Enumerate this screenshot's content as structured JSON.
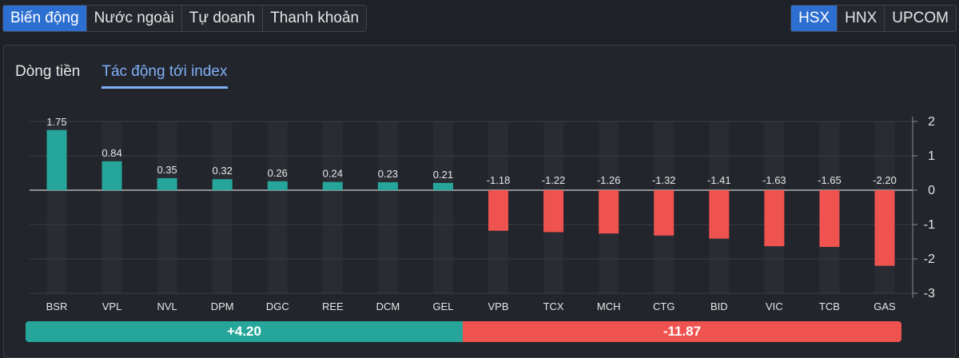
{
  "top_tabs": [
    "Biến động",
    "Nước ngoài",
    "Tự doanh",
    "Thanh khoản"
  ],
  "active_top_tab": 0,
  "exchange_tabs": [
    "HSX",
    "HNX",
    "UPCOM"
  ],
  "active_exchange": 0,
  "sub_tabs": [
    "Dòng tiền",
    "Tác động tới index"
  ],
  "active_sub_tab": 1,
  "colors": {
    "positive": "#26a69a",
    "negative": "#ef5350",
    "accent": "#2d6fd0",
    "accent_text": "#7fb0f5"
  },
  "chart_data": {
    "type": "bar",
    "categories": [
      "BSR",
      "VPL",
      "NVL",
      "DPM",
      "DGC",
      "REE",
      "DCM",
      "GEL",
      "VPB",
      "TCX",
      "MCH",
      "CTG",
      "BID",
      "VIC",
      "TCB",
      "GAS"
    ],
    "values": [
      1.75,
      0.84,
      0.35,
      0.32,
      0.26,
      0.24,
      0.23,
      0.21,
      -1.18,
      -1.22,
      -1.26,
      -1.32,
      -1.41,
      -1.63,
      -1.65,
      -2.2
    ],
    "value_labels": [
      "1.75",
      "0.84",
      "0.35",
      "0.32",
      "0.26",
      "0.24",
      "0.23",
      "0.21",
      "-1.18",
      "-1.22",
      "-1.26",
      "-1.32",
      "-1.41",
      "-1.63",
      "-1.65",
      "-2.20"
    ],
    "ylim": [
      -3,
      2
    ],
    "yticks": [
      2,
      1,
      0,
      -1,
      -2,
      -3
    ],
    "ytick_labels": [
      "2",
      "1",
      "0",
      "-1",
      "-2",
      "-3"
    ],
    "y_axis_position": "right",
    "grid": true
  },
  "totals": {
    "positive": 4.2,
    "negative": -11.87,
    "positive_label": "+4.20",
    "negative_label": "-11.87"
  }
}
